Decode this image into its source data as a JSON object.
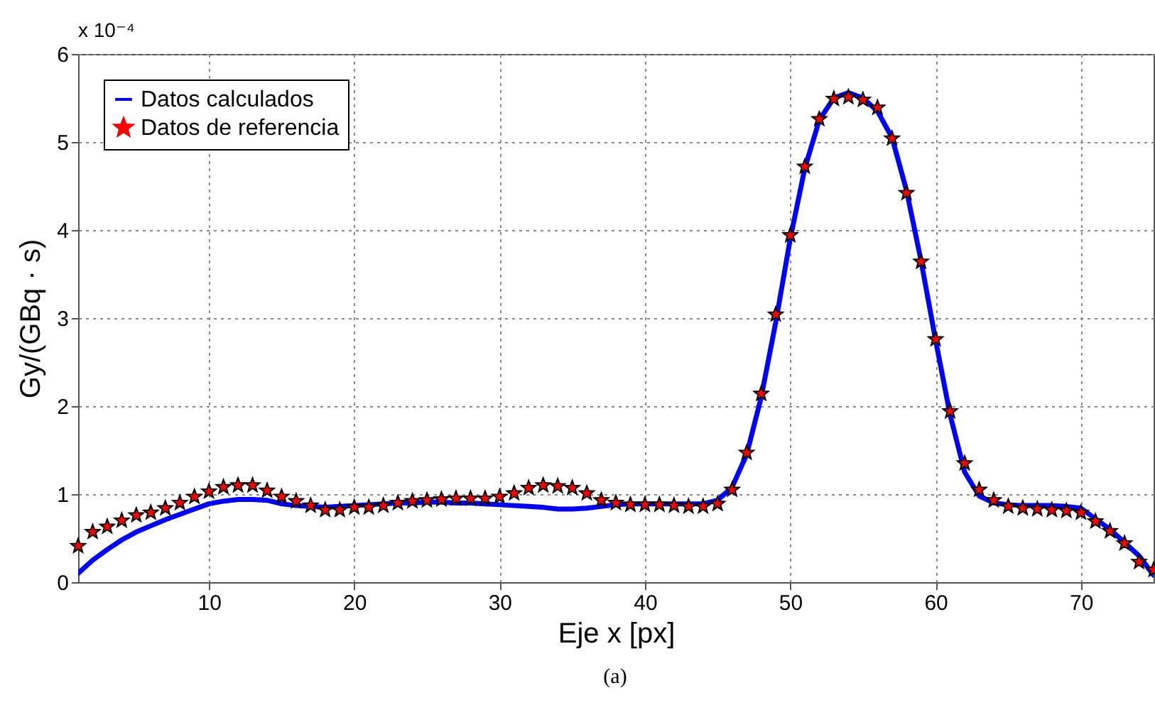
{
  "chart_data": {
    "type": "line",
    "xlabel": "Eje x [px]",
    "ylabel": "Gy/(GBq · s)",
    "annotations": [
      "x 10⁻⁴",
      "(a)"
    ],
    "x": [
      1,
      2,
      3,
      4,
      5,
      6,
      7,
      8,
      9,
      10,
      11,
      12,
      13,
      14,
      15,
      16,
      17,
      18,
      19,
      20,
      21,
      22,
      23,
      24,
      25,
      26,
      27,
      28,
      29,
      30,
      31,
      32,
      33,
      34,
      35,
      36,
      37,
      38,
      39,
      40,
      41,
      42,
      43,
      44,
      45,
      46,
      47,
      48,
      49,
      50,
      51,
      52,
      53,
      54,
      55,
      56,
      57,
      58,
      59,
      60,
      61,
      62,
      63,
      64,
      65,
      66,
      67,
      68,
      69,
      70,
      71,
      72,
      73,
      74,
      75
    ],
    "series": [
      {
        "name": "Datos calculados",
        "type": "line",
        "color": "#0000ff",
        "marker": "none",
        "line_style": "solid",
        "values": [
          0.1,
          0.25,
          0.37,
          0.48,
          0.57,
          0.64,
          0.71,
          0.77,
          0.83,
          0.89,
          0.92,
          0.94,
          0.94,
          0.93,
          0.89,
          0.87,
          0.86,
          0.85,
          0.86,
          0.87,
          0.88,
          0.89,
          0.9,
          0.9,
          0.91,
          0.91,
          0.9,
          0.9,
          0.89,
          0.88,
          0.87,
          0.86,
          0.85,
          0.83,
          0.83,
          0.84,
          0.86,
          0.88,
          0.89,
          0.89,
          0.89,
          0.89,
          0.89,
          0.89,
          0.93,
          1.08,
          1.45,
          2.1,
          2.95,
          3.9,
          4.7,
          5.25,
          5.5,
          5.56,
          5.5,
          5.35,
          5.05,
          4.45,
          3.65,
          2.75,
          1.9,
          1.25,
          0.98,
          0.9,
          0.88,
          0.87,
          0.87,
          0.87,
          0.86,
          0.84,
          0.72,
          0.6,
          0.45,
          0.3,
          0.08
        ]
      },
      {
        "name": "Datos de referencia",
        "type": "scatter",
        "color": "#ff0000",
        "marker": "star",
        "values": [
          0.41,
          0.57,
          0.63,
          0.7,
          0.76,
          0.79,
          0.84,
          0.9,
          0.97,
          1.03,
          1.08,
          1.1,
          1.1,
          1.04,
          0.97,
          0.92,
          0.87,
          0.82,
          0.82,
          0.85,
          0.85,
          0.87,
          0.9,
          0.92,
          0.93,
          0.94,
          0.95,
          0.95,
          0.95,
          0.97,
          1.01,
          1.07,
          1.1,
          1.09,
          1.07,
          1.01,
          0.93,
          0.9,
          0.88,
          0.88,
          0.88,
          0.87,
          0.86,
          0.86,
          0.89,
          1.05,
          1.47,
          2.14,
          3.04,
          3.94,
          4.72,
          5.26,
          5.49,
          5.51,
          5.48,
          5.39,
          5.04,
          4.42,
          3.64,
          2.76,
          1.94,
          1.35,
          1.05,
          0.93,
          0.86,
          0.84,
          0.83,
          0.82,
          0.81,
          0.79,
          0.69,
          0.58,
          0.44,
          0.23,
          0.14
        ]
      }
    ],
    "xlim": [
      1,
      75
    ],
    "xticks": [
      10,
      20,
      30,
      40,
      50,
      60,
      70
    ],
    "ylim": [
      0,
      6
    ],
    "yticks": [
      0,
      1,
      2,
      3,
      4,
      5,
      6
    ],
    "grid": true,
    "legend": "top left"
  }
}
